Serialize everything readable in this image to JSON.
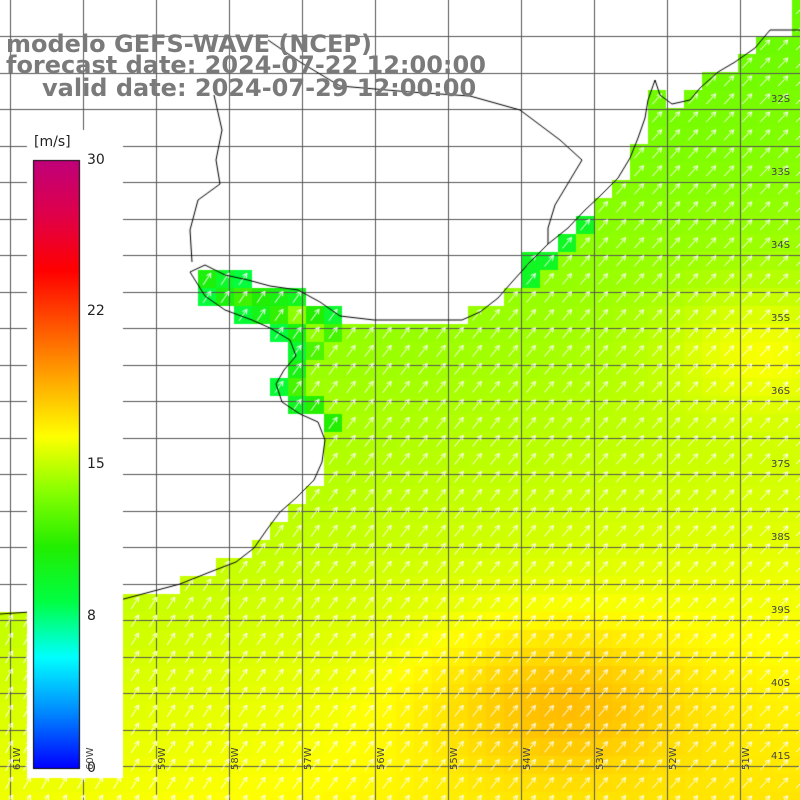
{
  "titles": {
    "line1": "modelo GEFS-WAVE (NCEP)",
    "line2": "forecast date: 2024-07-22 12:00:00",
    "line3": "valid date: 2024-07-29 12:00:00"
  },
  "colorbar": {
    "unit": "[m/s]",
    "min": 0,
    "max": 30,
    "tick_labels": [
      "30",
      "22",
      "15",
      "8",
      "0"
    ],
    "tick_values": [
      30,
      22,
      15,
      8,
      0
    ],
    "colors": [
      "#0000ff",
      "#0088ff",
      "#00ffff",
      "#00ff44",
      "#22ee00",
      "#88ff00",
      "#ffff00",
      "#ffaa00",
      "#ff5500",
      "#ff0000",
      "#e0004a",
      "#c0007a"
    ]
  },
  "grid": {
    "lat_labels": [
      "32S",
      "33S",
      "34S",
      "35S",
      "36S",
      "37S",
      "38S",
      "39S",
      "40S",
      "41S"
    ],
    "lat_values": [
      -32,
      -33,
      -34,
      -35,
      -36,
      -37,
      -38,
      -39,
      -40,
      -41
    ],
    "lon_labels": [
      "61W",
      "60W",
      "59W",
      "58W",
      "57W",
      "56W",
      "55W",
      "54W",
      "53W",
      "52W",
      "51W"
    ],
    "lon_values": [
      -61,
      -60,
      -59,
      -58,
      -57,
      -56,
      -55,
      -54,
      -53,
      -52,
      -51
    ]
  },
  "colors": {
    "land": "#ffffff",
    "coast": "#000000",
    "grid": "#555555",
    "title": "#7a7a7a",
    "arrow": "#ffffff"
  }
}
